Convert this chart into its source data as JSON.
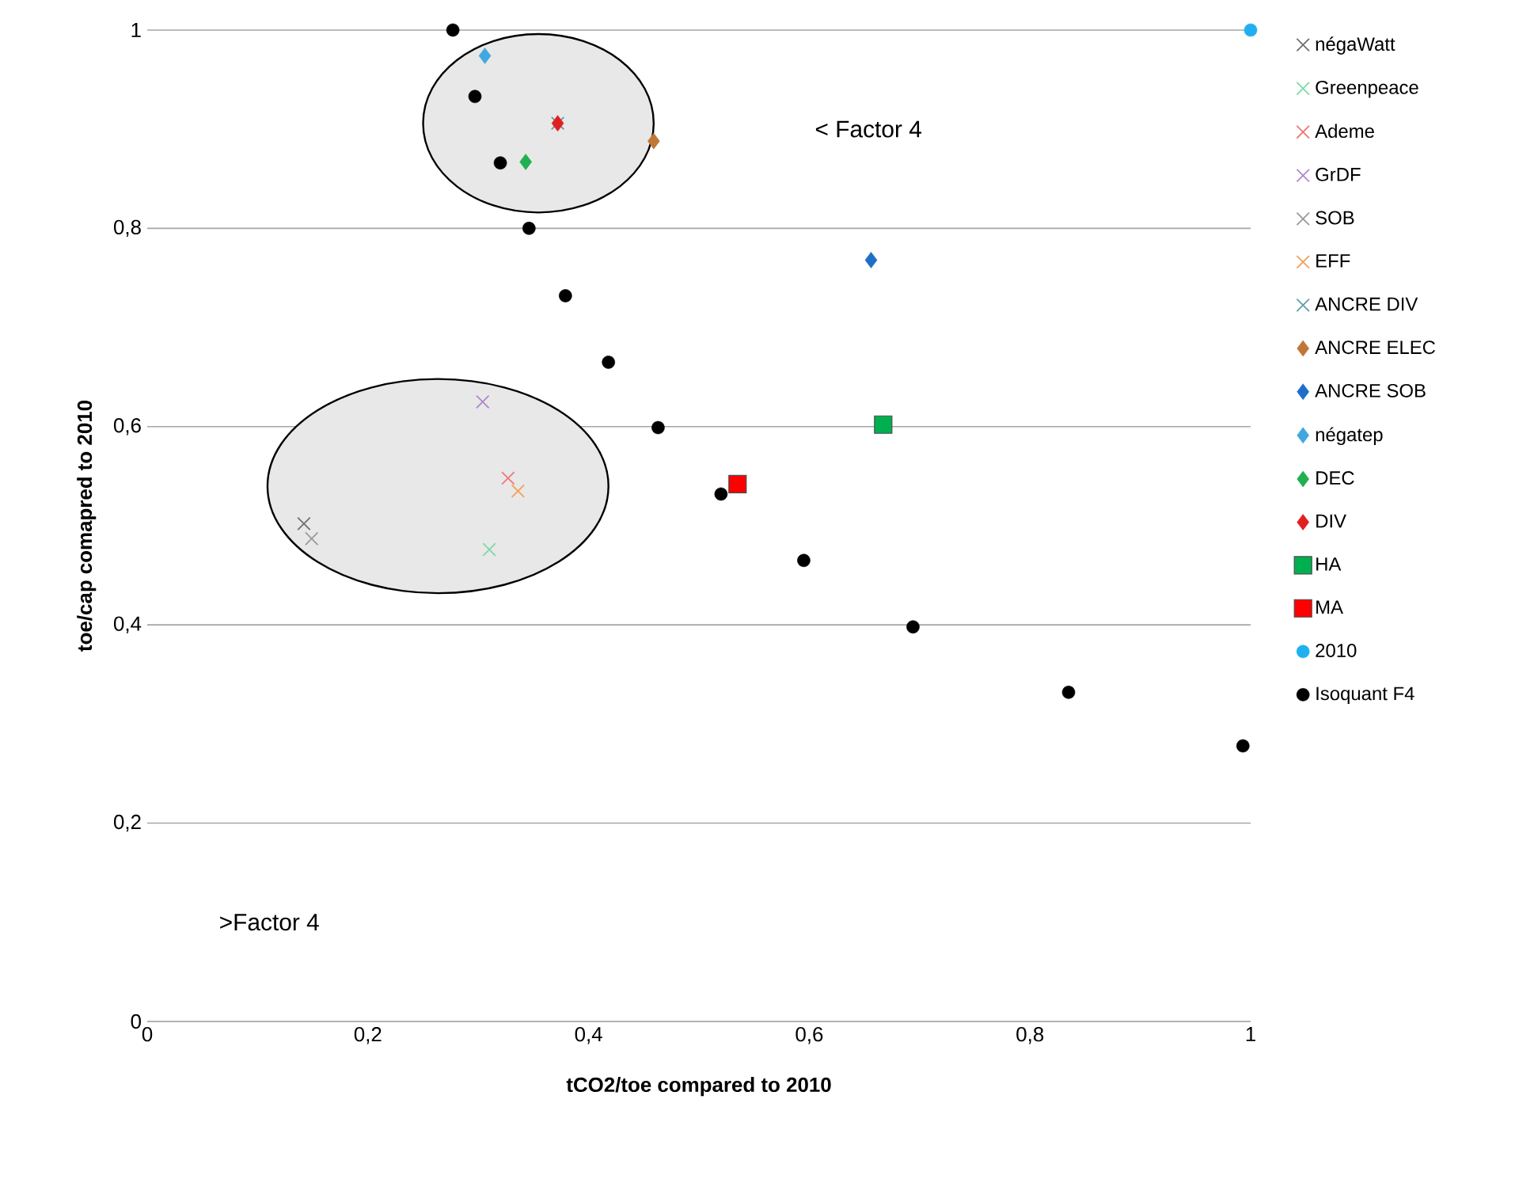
{
  "chart_data": {
    "type": "scatter",
    "xlabel": "tCO2/toe compared to 2010",
    "ylabel": "toe/cap comapred to 2010",
    "xlim": [
      0,
      1
    ],
    "ylim": [
      0,
      1
    ],
    "xticks": [
      0,
      {
        "value": 0.2,
        "label": "0,2"
      },
      {
        "value": 0.4,
        "label": "0,4"
      },
      {
        "value": 0.6,
        "label": "0,6"
      },
      {
        "value": 0.8,
        "label": "0,8"
      },
      1
    ],
    "yticks": [
      0,
      {
        "value": 0.2,
        "label": "0,2"
      },
      {
        "value": 0.4,
        "label": "0,4"
      },
      {
        "value": 0.6,
        "label": "0,6"
      },
      {
        "value": 0.8,
        "label": "0,8"
      },
      1
    ],
    "grid": "y",
    "legend": "right",
    "annotations": [
      "< Factor 4",
      ">Factor 4"
    ],
    "series": [
      {
        "name": "négaWatt",
        "color": "#6f6f6f",
        "marker": "cross",
        "x": [
          0.142
        ],
        "values": [
          0.502
        ]
      },
      {
        "name": "Greenpeace",
        "color": "#7fd8a8",
        "marker": "cross",
        "x": [
          0.31
        ],
        "values": [
          0.476
        ]
      },
      {
        "name": "Ademe",
        "color": "#f07878",
        "marker": "cross",
        "x": [
          0.327
        ],
        "values": [
          0.548
        ]
      },
      {
        "name": "GrDF",
        "color": "#b088c8",
        "marker": "cross",
        "x": [
          0.304
        ],
        "values": [
          0.625
        ]
      },
      {
        "name": "SOB",
        "color": "#9a9a9a",
        "marker": "cross",
        "x": [
          0.149
        ],
        "values": [
          0.487
        ]
      },
      {
        "name": "EFF",
        "color": "#f0a058",
        "marker": "cross",
        "x": [
          0.336
        ],
        "values": [
          0.535
        ]
      },
      {
        "name": "ANCRE DIV",
        "color": "#5f9ea8",
        "marker": "cross",
        "x": [
          0.372
        ],
        "values": [
          0.906
        ]
      },
      {
        "name": "ANCRE ELEC",
        "color": "#c07838",
        "marker": "diamond",
        "x": [
          0.459
        ],
        "values": [
          0.888
        ]
      },
      {
        "name": "ANCRE SOB",
        "color": "#1f6fc8",
        "marker": "diamond",
        "x": [
          0.656
        ],
        "values": [
          0.768
        ]
      },
      {
        "name": "négatep",
        "color": "#40a8e0",
        "marker": "diamond",
        "x": [
          0.306
        ],
        "values": [
          0.974
        ]
      },
      {
        "name": "DEC",
        "color": "#20b050",
        "marker": "diamond",
        "x": [
          0.343
        ],
        "values": [
          0.867
        ]
      },
      {
        "name": "DIV",
        "color": "#e02020",
        "marker": "diamond",
        "x": [
          0.372
        ],
        "values": [
          0.906
        ]
      },
      {
        "name": "HA",
        "color": "#00b050",
        "marker": "square",
        "x": [
          0.667
        ],
        "values": [
          0.602
        ]
      },
      {
        "name": "MA",
        "color": "#ff0000",
        "marker": "square",
        "x": [
          0.535
        ],
        "values": [
          0.542
        ]
      },
      {
        "name": "2010",
        "color": "#20b0f0",
        "marker": "circle",
        "x": [
          1
        ],
        "values": [
          1
        ]
      },
      {
        "name": "Isoquant F4",
        "color": "#000000",
        "marker": "circle",
        "x": [
          0.277,
          0.297,
          0.32,
          0.346,
          0.379,
          0.418,
          0.463,
          0.52,
          0.595,
          0.694,
          0.835,
          0.993
        ],
        "values": [
          1.0,
          0.933,
          0.866,
          0.8,
          0.732,
          0.665,
          0.599,
          0.532,
          0.465,
          0.398,
          0.332,
          0.278
        ]
      }
    ]
  }
}
